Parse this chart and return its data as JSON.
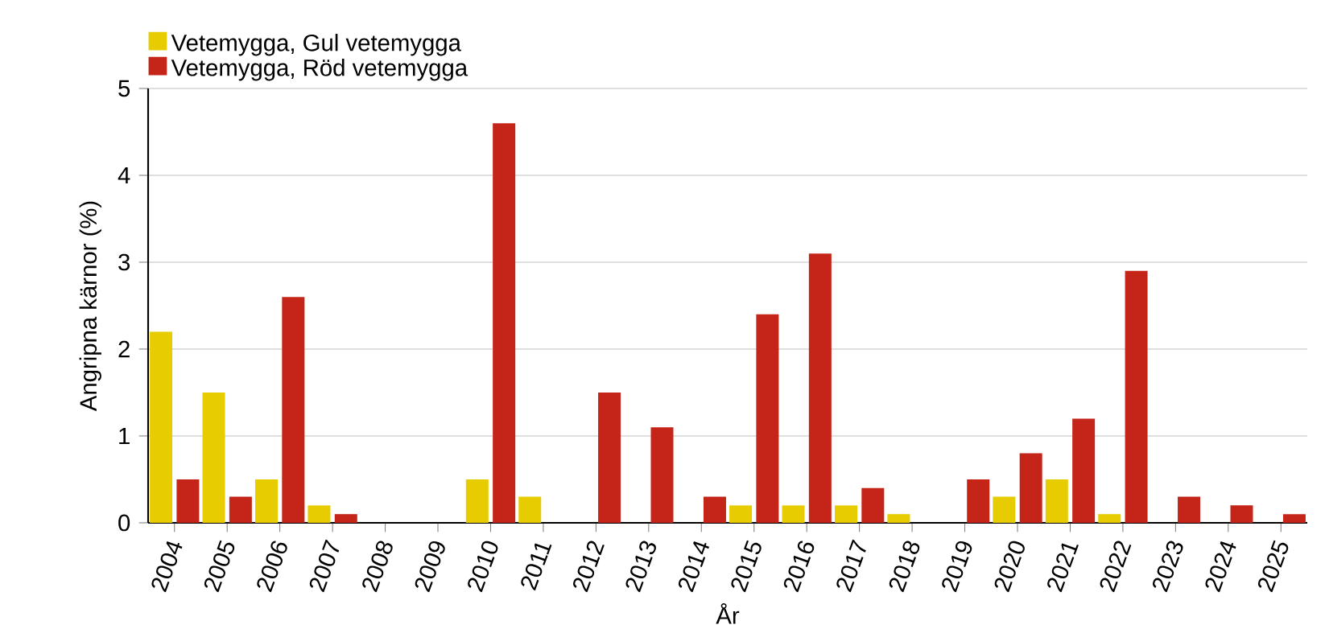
{
  "chart_data": {
    "type": "bar",
    "xlabel": "År",
    "ylabel": "Angripna kärnor (%)",
    "categories": [
      "2004",
      "2005",
      "2006",
      "2007",
      "2008",
      "2009",
      "2010",
      "2011",
      "2012",
      "2013",
      "2014",
      "2015",
      "2016",
      "2017",
      "2018",
      "2019",
      "2020",
      "2021",
      "2022",
      "2023",
      "2024",
      "2025"
    ],
    "series": [
      {
        "name": "Vetemygga, Gul vetemygga",
        "color": "#e6cc00",
        "values": [
          2.2,
          1.5,
          0.5,
          0.2,
          0,
          0,
          0.5,
          0.3,
          0,
          0,
          0,
          0.2,
          0.2,
          0.2,
          0.1,
          0,
          0.3,
          0.5,
          0.1,
          0,
          0,
          0
        ]
      },
      {
        "name": "Vetemygga, Röd vetemygga",
        "color": "#c42518",
        "values": [
          0.5,
          0.3,
          2.6,
          0.1,
          0,
          0,
          4.6,
          0,
          1.5,
          1.1,
          0.3,
          2.4,
          3.1,
          0.4,
          0,
          0.5,
          0.8,
          1.2,
          2.9,
          0.3,
          0.2,
          0.1
        ]
      }
    ],
    "ylim": [
      0,
      5
    ],
    "yticks": [
      0,
      1,
      2,
      3,
      4,
      5
    ],
    "grid": "y",
    "legend": "top left"
  }
}
